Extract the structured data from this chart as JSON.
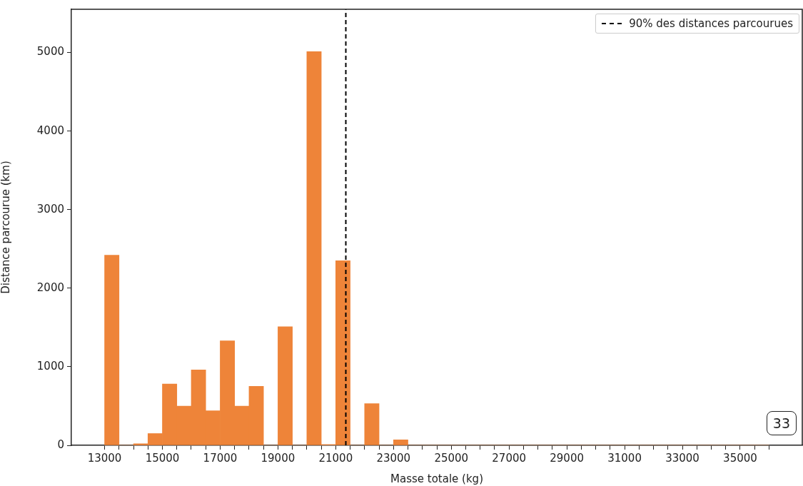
{
  "chart_data": {
    "type": "histogram",
    "xlabel": "Masse totale (kg)",
    "ylabel": "Distance parcourue (km)",
    "bins": [
      13000,
      13500,
      14000,
      14500,
      15000,
      15500,
      16000,
      16500,
      17000,
      17500,
      18000,
      18500,
      19000,
      19500,
      20000,
      20500,
      21000,
      21500,
      22000,
      22500,
      23000,
      23500,
      24000,
      24500,
      25000,
      25500,
      26000,
      26500,
      27000,
      27500,
      28000,
      28500,
      29000,
      29500,
      30000,
      30500,
      31000,
      31500,
      32000,
      32500,
      33000,
      33500,
      34000,
      34500,
      35000,
      35500,
      36000
    ],
    "values": [
      2420,
      0,
      20,
      150,
      780,
      500,
      960,
      440,
      1330,
      500,
      750,
      0,
      1510,
      0,
      5010,
      10,
      2350,
      0,
      530,
      0,
      70,
      0,
      0,
      0,
      0,
      0,
      0,
      0,
      0,
      0,
      0,
      0,
      0,
      0,
      0,
      0,
      0,
      0,
      0,
      0,
      0,
      0,
      0,
      0,
      0,
      0
    ],
    "color": "#ee8439",
    "xlim": [
      11850,
      37150
    ],
    "xticks": [
      13000,
      {
        "value": 13500,
        "label": null
      },
      {
        "value": 14000,
        "label": null
      },
      {
        "value": 14500,
        "label": null
      },
      15000,
      {
        "value": 15500,
        "label": null
      },
      {
        "value": 16000,
        "label": null
      },
      {
        "value": 16500,
        "label": null
      },
      17000,
      {
        "value": 17500,
        "label": null
      },
      {
        "value": 18000,
        "label": null
      },
      {
        "value": 18500,
        "label": null
      },
      19000,
      {
        "value": 19500,
        "label": null
      },
      {
        "value": 20000,
        "label": null
      },
      {
        "value": 20500,
        "label": null
      },
      21000,
      {
        "value": 21500,
        "label": null
      },
      {
        "value": 22000,
        "label": null
      },
      {
        "value": 22500,
        "label": null
      },
      23000,
      {
        "value": 23500,
        "label": null
      },
      {
        "value": 24000,
        "label": null
      },
      {
        "value": 24500,
        "label": null
      },
      25000,
      {
        "value": 25500,
        "label": null
      },
      {
        "value": 26000,
        "label": null
      },
      {
        "value": 26500,
        "label": null
      },
      27000,
      {
        "value": 27500,
        "label": null
      },
      {
        "value": 28000,
        "label": null
      },
      {
        "value": 28500,
        "label": null
      },
      29000,
      {
        "value": 29500,
        "label": null
      },
      {
        "value": 30000,
        "label": null
      },
      {
        "value": 30500,
        "label": null
      },
      31000,
      {
        "value": 31500,
        "label": null
      },
      {
        "value": 32000,
        "label": null
      },
      {
        "value": 32500,
        "label": null
      },
      33000,
      {
        "value": 33500,
        "label": null
      },
      {
        "value": 34000,
        "label": null
      },
      {
        "value": 34500,
        "label": null
      },
      35000,
      {
        "value": 35500,
        "label": null
      },
      {
        "value": 36000,
        "label": null
      }
    ],
    "ylim": [
      0,
      5550
    ],
    "yticks": [
      0,
      1000,
      2000,
      3000,
      4000,
      5000
    ],
    "ref_lines": [
      {
        "axis": "x",
        "value": 21350,
        "label": "90% des distances parcourues",
        "color": "#000000",
        "line_style": "dashed"
      }
    ],
    "legend": "top right",
    "grid": false,
    "annotations": [
      "33"
    ]
  }
}
